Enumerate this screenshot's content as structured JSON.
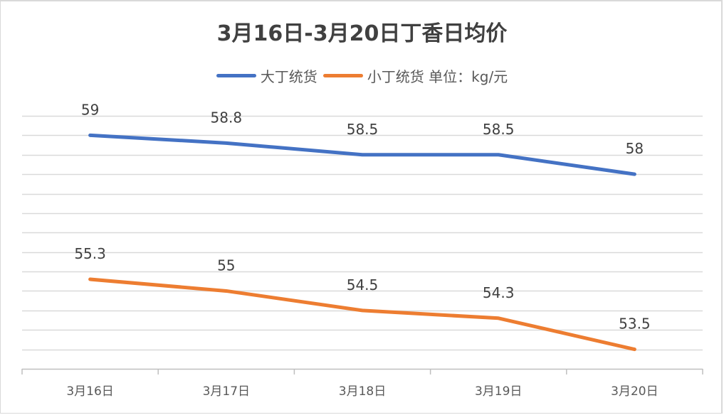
{
  "chart_data": {
    "type": "line",
    "title": "3月16日-3月20日丁香日均价",
    "xlabel": "",
    "ylabel": "",
    "unit_note": "单位：kg/元",
    "categories": [
      "3月16日",
      "3月17日",
      "3月18日",
      "3月19日",
      "3月20日"
    ],
    "series": [
      {
        "name": "大丁统货",
        "color": "#4472C4",
        "values": [
          59,
          58.8,
          58.5,
          58.5,
          58
        ]
      },
      {
        "name": "小丁统货",
        "color": "#ED7D31",
        "values": [
          55.3,
          55,
          54.5,
          54.3,
          53.5
        ]
      }
    ],
    "ylim": [
      53,
      59.5
    ],
    "y_grid_step": 0.5,
    "grid": true,
    "y_axis_visible": false,
    "data_labels": true,
    "legend_position": "top"
  },
  "legend": {
    "items": [
      {
        "label": "大丁统货",
        "color": "#4472C4"
      },
      {
        "label": "小丁统货 单位：kg/元",
        "color": "#ED7D31"
      }
    ]
  },
  "style": {
    "grid_color": "#D9D9D9",
    "axis_color": "#BFBFBF"
  }
}
